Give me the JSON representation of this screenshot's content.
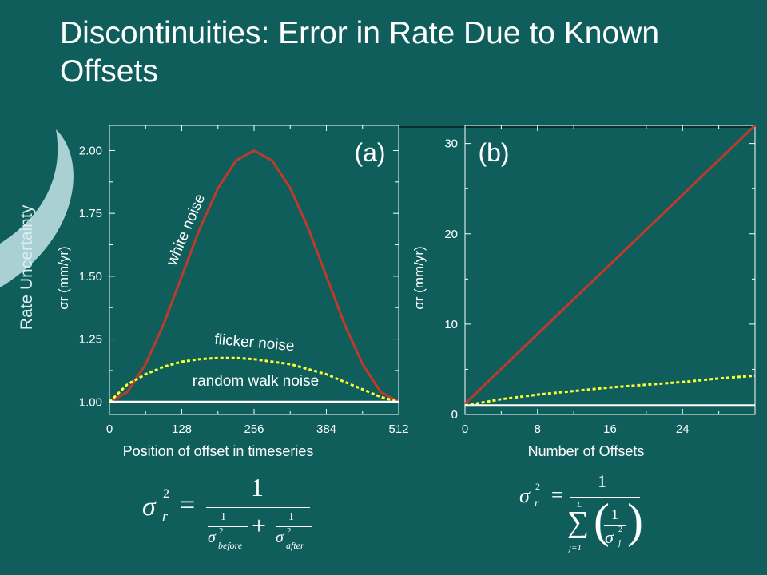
{
  "slide": {
    "title": "Discontinuities: Error in Rate Due to Known Offsets",
    "side_label": "Rate Uncertainty"
  },
  "colors": {
    "background": "#0f5e5c",
    "white_noise": "#c0392b",
    "flicker_noise": "#ffff33",
    "random_walk": "#ffffff",
    "decoration": "#a9d0d3"
  },
  "chart_data": [
    {
      "type": "line",
      "panel_label": "(a)",
      "xlabel": "Position of offset in timeseries",
      "ylabel": "σr (mm/yr)",
      "xlim": [
        0,
        512
      ],
      "ylim": [
        0.95,
        2.1
      ],
      "xticks": [
        0,
        128,
        256,
        384,
        512
      ],
      "yticks": [
        1.0,
        1.25,
        1.5,
        1.75,
        2.0
      ],
      "ytick_labels": [
        "1.00",
        "1.25",
        "1.50",
        "1.75",
        "2.00"
      ],
      "grid": false,
      "series": [
        {
          "name": "white noise",
          "style": "solid",
          "color": "#c0392b",
          "x": [
            0,
            32,
            64,
            96,
            128,
            160,
            192,
            224,
            256,
            288,
            320,
            352,
            384,
            416,
            448,
            480,
            512
          ],
          "y": [
            1.0,
            1.04,
            1.15,
            1.31,
            1.5,
            1.69,
            1.85,
            1.96,
            2.0,
            1.96,
            1.85,
            1.69,
            1.5,
            1.31,
            1.15,
            1.04,
            1.0
          ]
        },
        {
          "name": "flicker noise",
          "style": "dotted",
          "color": "#ffff33",
          "x": [
            0,
            32,
            64,
            96,
            128,
            160,
            192,
            224,
            256,
            288,
            320,
            352,
            384,
            416,
            448,
            480,
            512
          ],
          "y": [
            1.0,
            1.07,
            1.11,
            1.14,
            1.16,
            1.17,
            1.175,
            1.175,
            1.17,
            1.16,
            1.15,
            1.13,
            1.11,
            1.08,
            1.05,
            1.02,
            1.0
          ]
        },
        {
          "name": "random walk noise",
          "style": "solid",
          "color": "#ffffff",
          "x": [
            0,
            512
          ],
          "y": [
            1.0,
            1.0
          ]
        }
      ]
    },
    {
      "type": "line",
      "panel_label": "(b)",
      "xlabel": "Number of Offsets",
      "ylabel": "σr (mm/yr)",
      "xlim": [
        0,
        32
      ],
      "ylim": [
        0,
        32
      ],
      "xticks": [
        0,
        8,
        16,
        24
      ],
      "yticks": [
        0,
        10,
        20,
        30
      ],
      "ytick_labels": [
        "0",
        "10",
        "20",
        "30"
      ],
      "grid": false,
      "series": [
        {
          "name": "",
          "style": "solid",
          "color": "#c0392b",
          "x": [
            0,
            32
          ],
          "y": [
            1.2,
            32
          ]
        },
        {
          "name": "",
          "style": "dotted",
          "color": "#ffff33",
          "x": [
            0,
            4,
            8,
            12,
            16,
            20,
            24,
            28,
            32
          ],
          "y": [
            1.0,
            1.7,
            2.2,
            2.6,
            3.0,
            3.3,
            3.6,
            4.0,
            4.3
          ]
        },
        {
          "name": "",
          "style": "solid",
          "color": "#ffffff",
          "x": [
            0,
            32
          ],
          "y": [
            1.0,
            1.0
          ]
        }
      ]
    }
  ],
  "formulas": {
    "a": {
      "lhs": "σ",
      "lhs_sub": "r",
      "lhs_sup": "2",
      "equals": "=",
      "numerator": "1",
      "plus": "+",
      "frac_num": "1",
      "sigma": "σ",
      "sup2": "2",
      "before": "before",
      "after": "after"
    },
    "b": {
      "lhs": "σ",
      "lhs_sub": "r",
      "lhs_sup": "2",
      "equals": "=",
      "numerator": "1",
      "sum": "∑",
      "upper": "L",
      "lower": "j=1",
      "frac_num": "1",
      "sigma": "σ",
      "sub_j": "j",
      "sup2": "2"
    }
  }
}
